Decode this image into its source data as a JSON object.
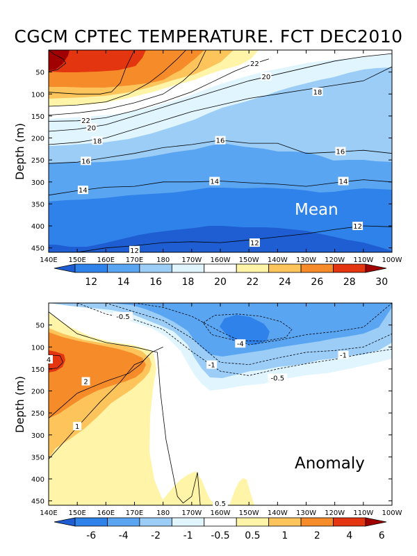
{
  "title": "CGCM CPTEC TEMPERATURE. FCT DEC2010",
  "chart_data": [
    {
      "type": "heatmap",
      "name": "Mean",
      "title": "CGCM CPTEC TEMPERATURE. FCT DEC2010",
      "panel_label": "Mean",
      "xlabel": "",
      "ylabel": "Depth (m)",
      "xlim": [
        140,
        260
      ],
      "ylim": [
        0,
        460
      ],
      "xticks": [
        140,
        150,
        160,
        170,
        180,
        190,
        200,
        210,
        220,
        230,
        240,
        250,
        260
      ],
      "xtick_labels": [
        "140E",
        "150E",
        "160E",
        "170E",
        "180",
        "170W",
        "160W",
        "150W",
        "140W",
        "130W",
        "120W",
        "110W",
        "100W"
      ],
      "yticks": [
        50,
        100,
        150,
        200,
        250,
        300,
        350,
        400,
        450
      ],
      "ytick_labels": [
        "50",
        "100",
        "150",
        "200",
        "250",
        "300",
        "350",
        "400",
        "450"
      ],
      "colorbar": {
        "levels": [
          "12",
          "14",
          "16",
          "18",
          "20",
          "22",
          "24",
          "26",
          "28",
          "30"
        ],
        "colors": [
          "#1e5ed2",
          "#2f82ea",
          "#5aa5f2",
          "#9bcdf7",
          "#e1f5ff",
          "#ffffff",
          "#fff4a8",
          "#fcc45a",
          "#f68b2a",
          "#e3350f",
          "#a00000"
        ]
      },
      "contours": [
        {
          "level": 30,
          "x": [
            140,
            142,
            145,
            146,
            143,
            140
          ],
          "y": [
            0,
            10,
            20,
            30,
            45,
            48
          ],
          "labels": []
        },
        {
          "level": 28,
          "x": [
            140,
            150,
            158,
            162,
            165,
            167,
            170
          ],
          "y": [
            96,
            100,
            100,
            95,
            75,
            40,
            0
          ],
          "labels": []
        },
        {
          "level": 26,
          "x": [
            140,
            150,
            160,
            168,
            175,
            180,
            185,
            188
          ],
          "y": [
            128,
            125,
            118,
            100,
            75,
            50,
            20,
            0
          ],
          "labels": []
        },
        {
          "level": 24,
          "x": [
            140,
            150,
            160,
            170,
            180,
            187,
            192,
            195
          ],
          "y": [
            148,
            143,
            135,
            120,
            100,
            70,
            40,
            0
          ],
          "labels": []
        },
        {
          "level": 22,
          "x": [
            140,
            150,
            160,
            170,
            180,
            190,
            198,
            205,
            210,
            217
          ],
          "y": [
            162,
            161,
            154,
            138,
            118,
            95,
            70,
            48,
            35,
            20
          ],
          "labels": [
            {
              "x": 153,
              "y": 160,
              "text": "22"
            },
            {
              "x": 212,
              "y": 30,
              "text": "22"
            }
          ]
        },
        {
          "level": 20,
          "x": [
            140,
            150,
            160,
            170,
            180,
            190,
            200,
            210,
            220,
            230,
            240,
            250,
            260
          ],
          "y": [
            185,
            180,
            170,
            150,
            130,
            110,
            90,
            70,
            55,
            40,
            25,
            15,
            8
          ],
          "labels": [
            {
              "x": 155,
              "y": 176,
              "text": "20"
            },
            {
              "x": 216,
              "y": 60,
              "text": "20"
            }
          ]
        },
        {
          "level": 18,
          "x": [
            140,
            150,
            160,
            170,
            180,
            190,
            200,
            210,
            220,
            230,
            240,
            250,
            260
          ],
          "y": [
            215,
            210,
            200,
            180,
            160,
            140,
            125,
            110,
            100,
            90,
            80,
            70,
            38
          ],
          "labels": [
            {
              "x": 157,
              "y": 206,
              "text": "18"
            },
            {
              "x": 234,
              "y": 95,
              "text": "18"
            }
          ]
        },
        {
          "level": 16,
          "x": [
            140,
            150,
            160,
            170,
            180,
            190,
            200,
            210,
            220,
            230,
            240,
            250,
            260
          ],
          "y": [
            258,
            255,
            245,
            235,
            222,
            215,
            205,
            212,
            212,
            235,
            232,
            228,
            235
          ],
          "labels": [
            {
              "x": 153,
              "y": 252,
              "text": "16"
            },
            {
              "x": 200,
              "y": 205,
              "text": "16"
            },
            {
              "x": 242,
              "y": 230,
              "text": "16"
            }
          ]
        },
        {
          "level": 14,
          "x": [
            140,
            150,
            160,
            170,
            180,
            190,
            200,
            210,
            220,
            230,
            240,
            250,
            260
          ],
          "y": [
            330,
            320,
            312,
            310,
            300,
            300,
            298,
            302,
            305,
            310,
            302,
            295,
            300
          ],
          "labels": [
            {
              "x": 152,
              "y": 318,
              "text": "14"
            },
            {
              "x": 198,
              "y": 298,
              "text": "14"
            },
            {
              "x": 243,
              "y": 298,
              "text": "14"
            }
          ]
        },
        {
          "level": 12,
          "x": [
            140,
            150,
            160,
            170,
            180,
            190,
            200,
            210,
            220,
            230,
            240,
            250,
            260
          ],
          "y": [
            460,
            460,
            450,
            445,
            438,
            436,
            438,
            432,
            425,
            418,
            408,
            400,
            402
          ],
          "labels": [
            {
              "x": 170,
              "y": 455,
              "text": "12"
            },
            {
              "x": 212,
              "y": 438,
              "text": "12"
            },
            {
              "x": 248,
              "y": 400,
              "text": "12"
            }
          ]
        }
      ]
    },
    {
      "type": "heatmap",
      "name": "Anomaly",
      "panel_label": "Anomaly",
      "xlabel": "",
      "ylabel": "Depth (m)",
      "xlim": [
        140,
        260
      ],
      "ylim": [
        0,
        460
      ],
      "xticks": [
        140,
        150,
        160,
        170,
        180,
        190,
        200,
        210,
        220,
        230,
        240,
        250,
        260
      ],
      "xtick_labels": [
        "140E",
        "150E",
        "160E",
        "170E",
        "180",
        "170W",
        "160W",
        "150W",
        "140W",
        "130W",
        "120W",
        "110W",
        "100W"
      ],
      "yticks": [
        50,
        100,
        150,
        200,
        250,
        300,
        350,
        400,
        450
      ],
      "ytick_labels": [
        "50",
        "100",
        "150",
        "200",
        "250",
        "300",
        "350",
        "400",
        "450"
      ],
      "colorbar": {
        "levels": [
          "-6",
          "-4",
          "-2",
          "-1",
          "-0.5",
          "0.5",
          "1",
          "2",
          "4",
          "6"
        ],
        "colors": [
          "#1e5ed2",
          "#2f82ea",
          "#5aa5f2",
          "#9bcdf7",
          "#e1f5ff",
          "#ffffff",
          "#fff4a8",
          "#fcc45a",
          "#f68b2a",
          "#e3350f",
          "#a00000"
        ]
      },
      "contours": [
        {
          "level": 0.5,
          "x": [
            140,
            150,
            160,
            170,
            178,
            179,
            181,
            185,
            187,
            190,
            192,
            193
          ],
          "y": [
            20,
            70,
            90,
            100,
            112,
            200,
            310,
            440,
            455,
            440,
            385,
            460
          ],
          "labels": [
            {
              "x": 200,
              "y": 455,
              "text": "0.5"
            }
          ]
        },
        {
          "level": 1,
          "x": [
            140,
            150,
            158,
            165,
            170,
            173,
            176,
            180
          ],
          "y": [
            355,
            282,
            225,
            180,
            140,
            132,
            112,
            100
          ],
          "labels": [
            {
              "x": 150,
              "y": 280,
              "text": "1"
            }
          ]
        },
        {
          "level": 2,
          "x": [
            140,
            150,
            160,
            168,
            172,
            175
          ],
          "y": [
            262,
            205,
            178,
            160,
            140,
            118
          ],
          "labels": [
            {
              "x": 153,
              "y": 178,
              "text": "2"
            }
          ]
        },
        {
          "level": 4,
          "x": [
            140,
            144,
            145,
            143,
            140
          ],
          "y": [
            118,
            120,
            135,
            148,
            150
          ],
          "labels": [
            {
              "x": 140,
              "y": 128,
              "text": "4"
            }
          ]
        },
        {
          "level": -0.5,
          "x": [
            150,
            160,
            170,
            180,
            190,
            200,
            210,
            220,
            230,
            240,
            250,
            260
          ],
          "y": [
            0,
            25,
            38,
            60,
            110,
            155,
            165,
            150,
            138,
            128,
            115,
            105
          ],
          "labels": [
            {
              "x": 166,
              "y": 30,
              "text": "-0.5"
            },
            {
              "x": 220,
              "y": 170,
              "text": "-0.5"
            }
          ]
        },
        {
          "level": -1,
          "x": [
            160,
            170,
            180,
            190,
            200,
            210,
            220,
            230,
            240,
            250,
            260
          ],
          "y": [
            0,
            20,
            40,
            80,
            135,
            140,
            125,
            112,
            108,
            100,
            70
          ],
          "labels": [
            {
              "x": 197,
              "y": 140,
              "text": "-1"
            },
            {
              "x": 243,
              "y": 118,
              "text": "-1"
            }
          ]
        },
        {
          "level": -2,
          "x": [
            170,
            180,
            190,
            200,
            210,
            220,
            230,
            240,
            250,
            260
          ],
          "y": [
            0,
            10,
            30,
            65,
            95,
            85,
            72,
            65,
            55,
            0
          ],
          "labels": []
        },
        {
          "level": -4,
          "x": [
            194,
            198,
            206,
            214,
            221,
            225,
            223,
            215,
            205,
            197,
            194
          ],
          "y": [
            45,
            28,
            25,
            30,
            42,
            60,
            78,
            87,
            85,
            72,
            45
          ],
          "labels": [
            {
              "x": 207,
              "y": 92,
              "text": "-4"
            }
          ]
        }
      ]
    }
  ]
}
